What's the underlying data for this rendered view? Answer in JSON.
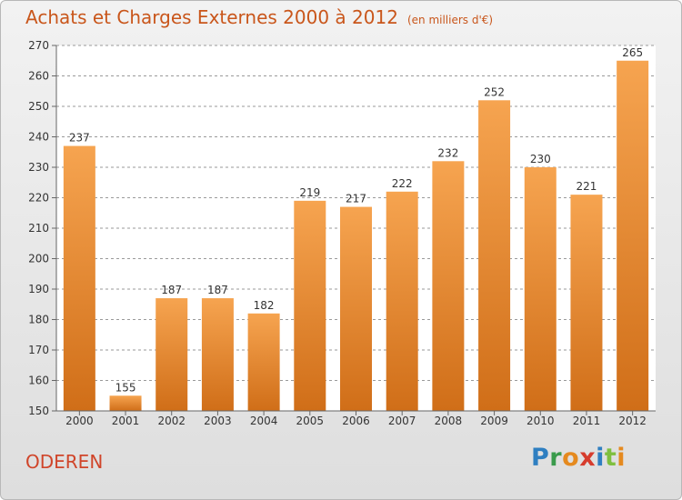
{
  "title": "Achats et Charges Externes 2000 à 2012",
  "subtitle": "(en milliers d'€)",
  "footer_label": "ODEREN",
  "logo": {
    "text": "Proxiti",
    "letter_colors": [
      "#2f7fc1",
      "#3a9b4c",
      "#e58a1f",
      "#d63c2d",
      "#2f7fc1",
      "#7fbf3f",
      "#e58a1f"
    ]
  },
  "colors": {
    "bar_top": "#f6a450",
    "bar_bottom": "#d06e18",
    "title": "#c9561b",
    "grid": "#9a9a9a"
  },
  "chart_data": {
    "type": "bar",
    "categories": [
      "2000",
      "2001",
      "2002",
      "2003",
      "2004",
      "2005",
      "2006",
      "2007",
      "2008",
      "2009",
      "2010",
      "2011",
      "2012"
    ],
    "values": [
      237,
      155,
      187,
      187,
      182,
      219,
      217,
      222,
      232,
      252,
      230,
      221,
      265
    ],
    "ylim": [
      150,
      270
    ],
    "yticks": [
      150,
      160,
      170,
      180,
      190,
      200,
      210,
      220,
      230,
      240,
      250,
      260,
      270
    ],
    "grid": "horizontal dashed",
    "legend": "none"
  }
}
